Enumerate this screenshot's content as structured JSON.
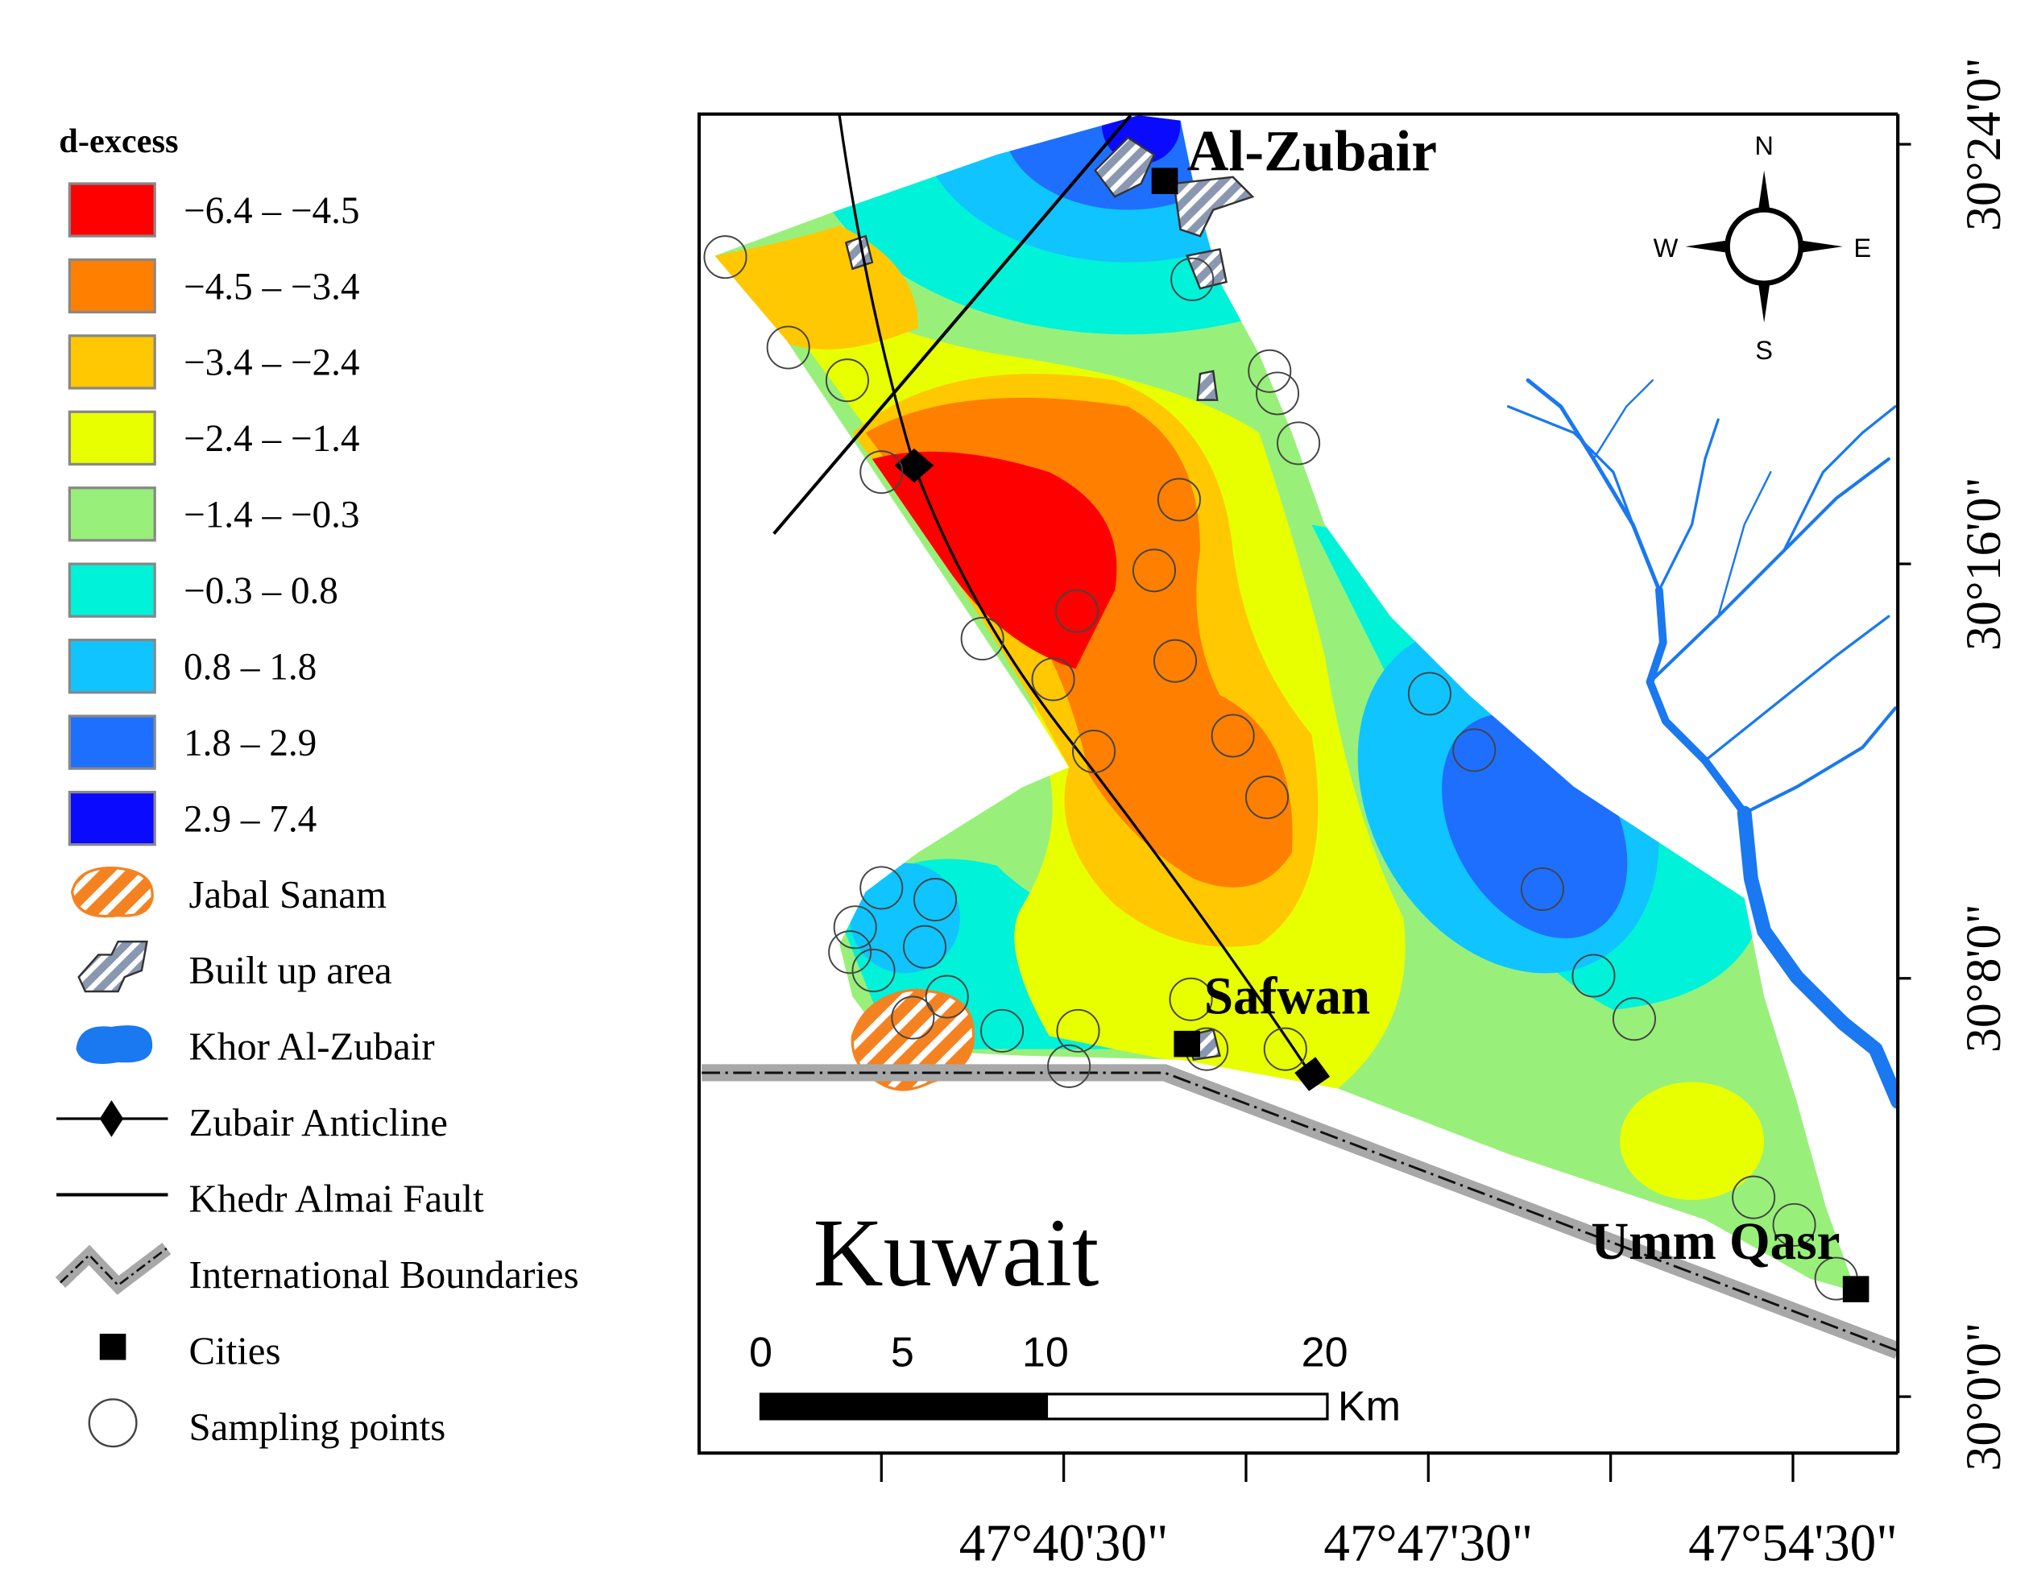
{
  "legend": {
    "title": "d-excess",
    "ranges": [
      {
        "label": "−6.4 – −4.5",
        "color": "#ff0000"
      },
      {
        "label": "−4.5 – −3.4",
        "color": "#ff7f00"
      },
      {
        "label": "−3.4 – −2.4",
        "color": "#ffc800"
      },
      {
        "label": "−2.4 – −1.4",
        "color": "#e8ff00"
      },
      {
        "label": "−1.4 – −0.3",
        "color": "#98f07a"
      },
      {
        "label": "−0.3 – 0.8",
        "color": "#00f2d9"
      },
      {
        "label": "0.8 – 1.8",
        "color": "#10c4ff"
      },
      {
        "label": "1.8 – 2.9",
        "color": "#1f6fff"
      },
      {
        "label": "2.9 – 7.4",
        "color": "#0a0aff"
      }
    ],
    "symbols": [
      "Jabal Sanam",
      "Built up area",
      "Khor Al-Zubair",
      "Zubair Anticline",
      "Khedr Almai Fault",
      "International Boundaries",
      "Cities",
      "Sampling points"
    ]
  },
  "map": {
    "places": [
      "Al-Zubair",
      "Safwan",
      "Umm Qasr"
    ],
    "country": "Kuwait",
    "compass": {
      "N": "N",
      "E": "E",
      "S": "S",
      "W": "W"
    },
    "scale": {
      "labels": [
        "0",
        "5",
        "10",
        "20"
      ],
      "unit": "Km"
    },
    "latitude_labels": [
      "30°24'0\"",
      "30°16'0\"",
      "30°8'0\"",
      "30°0'0\""
    ],
    "longitude_labels": [
      "47°40'30\"",
      "47°47'30\"",
      "47°54'30\""
    ]
  }
}
